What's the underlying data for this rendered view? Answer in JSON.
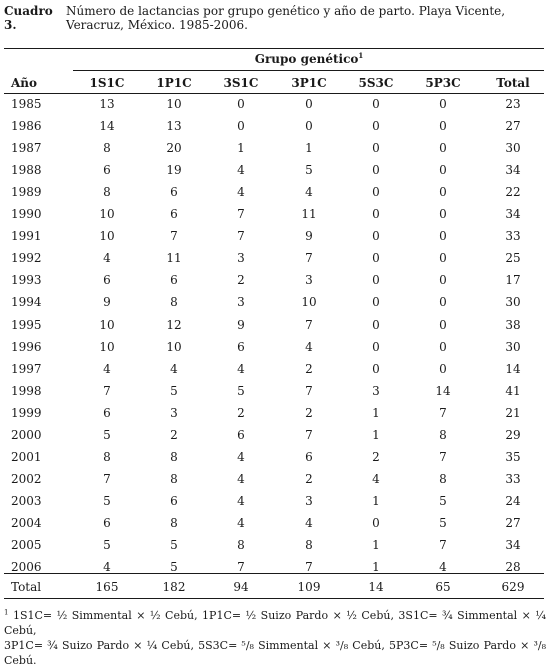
{
  "caption": {
    "label": "Cuadro 3.",
    "text": "Número de lactancias por grupo genético y año de parto. Playa Vicente, Veracruz, México. 1985-2006."
  },
  "table": {
    "group_header": "Grupo genético",
    "group_header_sup": "1",
    "year_header": "Año",
    "columns": [
      "1S1C",
      "1P1C",
      "3S1C",
      "3P1C",
      "5S3C",
      "5P3C",
      "Total"
    ],
    "rows": [
      {
        "year": "1985",
        "values": [
          "13",
          "10",
          "0",
          "0",
          "0",
          "0",
          "23"
        ]
      },
      {
        "year": "1986",
        "values": [
          "14",
          "13",
          "0",
          "0",
          "0",
          "0",
          "27"
        ]
      },
      {
        "year": "1987",
        "values": [
          "8",
          "20",
          "1",
          "1",
          "0",
          "0",
          "30"
        ]
      },
      {
        "year": "1988",
        "values": [
          "6",
          "19",
          "4",
          "5",
          "0",
          "0",
          "34"
        ]
      },
      {
        "year": "1989",
        "values": [
          "8",
          "6",
          "4",
          "4",
          "0",
          "0",
          "22"
        ]
      },
      {
        "year": "1990",
        "values": [
          "10",
          "6",
          "7",
          "11",
          "0",
          "0",
          "34"
        ]
      },
      {
        "year": "1991",
        "values": [
          "10",
          "7",
          "7",
          "9",
          "0",
          "0",
          "33"
        ]
      },
      {
        "year": "1992",
        "values": [
          "4",
          "11",
          "3",
          "7",
          "0",
          "0",
          "25"
        ]
      },
      {
        "year": "1993",
        "values": [
          "6",
          "6",
          "2",
          "3",
          "0",
          "0",
          "17"
        ]
      },
      {
        "year": "1994",
        "values": [
          "9",
          "8",
          "3",
          "10",
          "0",
          "0",
          "30"
        ]
      },
      {
        "year": "1995",
        "values": [
          "10",
          "12",
          "9",
          "7",
          "0",
          "0",
          "38"
        ]
      },
      {
        "year": "1996",
        "values": [
          "10",
          "10",
          "6",
          "4",
          "0",
          "0",
          "30"
        ]
      },
      {
        "year": "1997",
        "values": [
          "4",
          "4",
          "4",
          "2",
          "0",
          "0",
          "14"
        ]
      },
      {
        "year": "1998",
        "values": [
          "7",
          "5",
          "5",
          "7",
          "3",
          "14",
          "41"
        ]
      },
      {
        "year": "1999",
        "values": [
          "6",
          "3",
          "2",
          "2",
          "1",
          "7",
          "21"
        ]
      },
      {
        "year": "2000",
        "values": [
          "5",
          "2",
          "6",
          "7",
          "1",
          "8",
          "29"
        ]
      },
      {
        "year": "2001",
        "values": [
          "8",
          "8",
          "4",
          "6",
          "2",
          "7",
          "35"
        ]
      },
      {
        "year": "2002",
        "values": [
          "7",
          "8",
          "4",
          "2",
          "4",
          "8",
          "33"
        ]
      },
      {
        "year": "2003",
        "values": [
          "5",
          "6",
          "4",
          "3",
          "1",
          "5",
          "24"
        ]
      },
      {
        "year": "2004",
        "values": [
          "6",
          "8",
          "4",
          "4",
          "0",
          "5",
          "27"
        ]
      },
      {
        "year": "2005",
        "values": [
          "5",
          "5",
          "8",
          "8",
          "1",
          "7",
          "34"
        ]
      },
      {
        "year": "2006",
        "values": [
          "4",
          "5",
          "7",
          "7",
          "1",
          "4",
          "28"
        ]
      }
    ],
    "total_row": {
      "label": "Total",
      "values": [
        "165",
        "182",
        "94",
        "109",
        "14",
        "65",
        "629"
      ]
    }
  },
  "footnote": {
    "marker": "1",
    "line1": "1S1C= ½ Simmental × ½ Cebú, 1P1C= ½ Suizo Pardo × ½ Cebú, 3S1C= ¾ Simmental × ¼ Cebú,",
    "line2": "3P1C= ¾ Suizo Pardo × ¼ Cebú, 5S3C= ⁵/₈ Simmental × ³/₈ Cebú, 5P3C= ⁵/₈ Suizo Pardo × ³/₈ Cebú."
  }
}
